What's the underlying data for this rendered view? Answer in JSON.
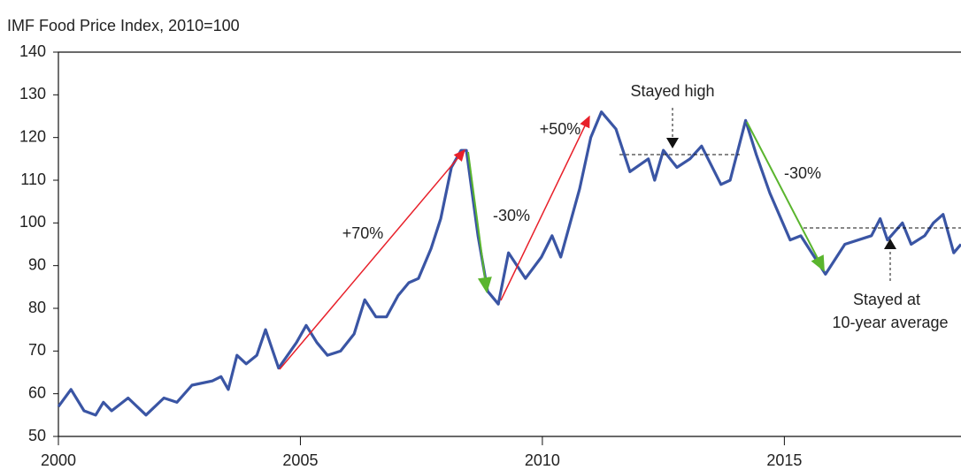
{
  "chart_data": {
    "type": "line",
    "ylabel": "IMF Food Price Index, 2010=100",
    "x": [
      2000,
      2000.26,
      2000.53,
      2000.77,
      2000.93,
      2001.1,
      2001.44,
      2001.81,
      2002.18,
      2002.45,
      2002.76,
      2003.18,
      2003.36,
      2003.51,
      2003.69,
      2003.88,
      2004.1,
      2004.28,
      2004.55,
      2004.92,
      2005.12,
      2005.34,
      2005.56,
      2005.83,
      2006.11,
      2006.33,
      2006.56,
      2006.78,
      2007.02,
      2007.24,
      2007.44,
      2007.7,
      2007.9,
      2008.12,
      2008.32,
      2008.43,
      2008.67,
      2008.87,
      2009.09,
      2009.3,
      2009.65,
      2009.98,
      2010.2,
      2010.38,
      2010.77,
      2011.0,
      2011.22,
      2011.52,
      2011.81,
      2012.19,
      2012.32,
      2012.5,
      2012.78,
      2013.05,
      2013.29,
      2013.69,
      2013.88,
      2014.2,
      2014.42,
      2014.7,
      2015.12,
      2015.34,
      2015.85,
      2016.25,
      2016.8,
      2016.98,
      2017.13,
      2017.44,
      2017.62,
      2017.9,
      2018.08,
      2018.28,
      2018.5,
      2018.65
    ],
    "series": [
      {
        "color": "#3a55a4",
        "values": [
          57,
          61,
          56,
          55,
          58,
          56,
          59,
          55,
          59,
          58,
          62,
          63,
          64,
          61,
          69,
          67,
          69,
          75,
          66,
          72,
          76,
          72,
          69,
          70,
          74,
          82,
          78,
          78,
          83,
          86,
          87,
          94,
          101,
          113,
          117,
          117,
          97,
          84,
          81,
          93,
          87,
          92,
          97,
          92,
          108,
          120,
          126,
          122,
          112,
          115,
          110,
          117,
          113,
          115,
          118,
          109,
          110,
          124,
          116,
          107,
          96,
          97,
          88,
          95,
          97,
          101,
          96,
          100,
          95,
          97,
          100,
          102,
          93,
          95
        ]
      }
    ],
    "xlim": [
      2000,
      2018.65
    ],
    "xticks": [
      2000,
      2005,
      2010,
      2015
    ],
    "ylim": [
      50,
      140
    ],
    "yticks": [
      50,
      60,
      70,
      80,
      90,
      100,
      110,
      120,
      130,
      140
    ],
    "annotations": [
      "+70%",
      "-30%",
      "+50%",
      "Stayed high",
      "-30%",
      "Stayed at",
      "10-year average"
    ]
  }
}
